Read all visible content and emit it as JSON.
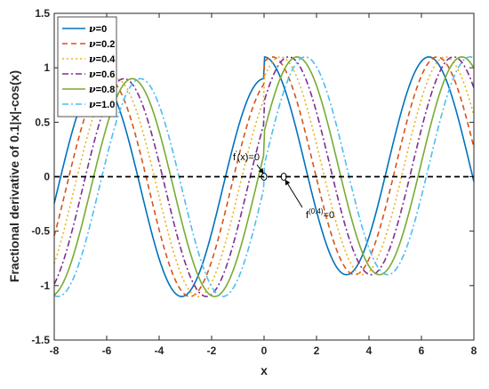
{
  "chart_data": {
    "type": "line",
    "xlabel": "x",
    "ylabel": "Fractional derivative of 0.1|x|-cos(x)",
    "xlim": [
      -8,
      8
    ],
    "ylim": [
      -1.5,
      1.5
    ],
    "xticks": [
      "-8",
      "-6",
      "-4",
      "-2",
      "0",
      "2",
      "4",
      "6",
      "8"
    ],
    "yticks": [
      "-1.5",
      "-1",
      "-0.5",
      "0",
      "0.5",
      "1",
      "1.5"
    ],
    "legend_position": "top-left",
    "series": [
      {
        "legend_symbol": "ν",
        "legend_value": "=0",
        "nu": 0.0,
        "color": "#0072BD",
        "dash": "solid"
      },
      {
        "legend_symbol": "ν",
        "legend_value": "=0.2",
        "nu": 0.2,
        "color": "#D95319",
        "dash": "dashed"
      },
      {
        "legend_symbol": "ν",
        "legend_value": "=0.4",
        "nu": 0.4,
        "color": "#EDB120",
        "dash": "dotted"
      },
      {
        "legend_symbol": "ν",
        "legend_value": "=0.6",
        "nu": 0.6,
        "color": "#7E2F8E",
        "dash": "dashdot"
      },
      {
        "legend_symbol": "ν",
        "legend_value": "=0.8",
        "nu": 0.8,
        "color": "#77AC30",
        "dash": "solid"
      },
      {
        "legend_symbol": "ν",
        "legend_value": "=1.0",
        "nu": 1.0,
        "color": "#4DBEEE",
        "dash": "dashdot"
      }
    ],
    "zero_line": {
      "y": 0,
      "color": "#000000",
      "dash": "dashed"
    },
    "annotations": [
      {
        "text_main": "f",
        "text_sup": "'",
        "text_tail": "(x)=0",
        "target_x": 0.0,
        "target_y": 0.0
      },
      {
        "text_main": "f",
        "text_sup": "(0.4)",
        "text_tail": "=0",
        "target_x": 0.75,
        "target_y": 0.0
      }
    ]
  }
}
